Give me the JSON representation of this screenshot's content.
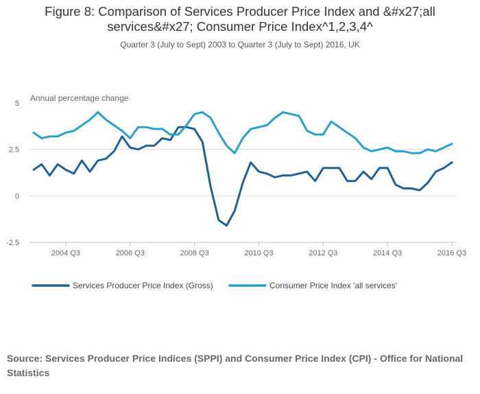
{
  "chart_data": {
    "type": "line",
    "title": "Figure 8: Comparison of Services Producer Price Index and &#x27;all services&#x27; Consumer Price Index^1,2,3,4^",
    "subtitle": "Quarter 3 (July to Sept) 2003 to Quarter 3 (July to Sept) 2016, UK",
    "ylabel": "Annual percentage change",
    "xlabel": "",
    "ylim": [
      -2.5,
      5
    ],
    "yticks": [
      -2.5,
      0,
      2.5,
      5
    ],
    "ytick_labels": [
      "-2.5",
      "0",
      "2.5",
      "5"
    ],
    "xtick_labels": [
      "2004 Q3",
      "2006 Q3",
      "2008 Q3",
      "2010 Q3",
      "2012 Q3",
      "2014 Q3",
      "2016 Q3"
    ],
    "xtick_index": [
      4,
      12,
      20,
      28,
      36,
      44,
      52
    ],
    "n_points": 53,
    "grid": true,
    "legend_position": "bottom-left",
    "series": [
      {
        "name": "Services Producer Price Index (Gross)",
        "color": "#206095",
        "values": [
          1.4,
          1.7,
          1.1,
          1.7,
          1.4,
          1.2,
          1.9,
          1.3,
          1.9,
          2.0,
          2.4,
          3.2,
          2.6,
          2.5,
          2.7,
          2.7,
          3.1,
          3.0,
          3.7,
          3.7,
          3.6,
          2.9,
          0.5,
          -1.3,
          -1.6,
          -0.8,
          0.7,
          1.8,
          1.3,
          1.2,
          1.0,
          1.1,
          1.1,
          1.2,
          1.3,
          0.8,
          1.5,
          1.5,
          1.5,
          0.8,
          0.8,
          1.3,
          0.9,
          1.5,
          1.5,
          0.6,
          0.4,
          0.4,
          0.3,
          0.7,
          1.3,
          1.5,
          1.8
        ]
      },
      {
        "name": "Consumer Price Index 'all services'",
        "color": "#27a0cc",
        "values": [
          3.4,
          3.1,
          3.2,
          3.2,
          3.4,
          3.5,
          3.8,
          4.1,
          4.5,
          4.1,
          3.8,
          3.5,
          3.1,
          3.7,
          3.7,
          3.6,
          3.6,
          3.3,
          3.3,
          3.8,
          4.4,
          4.5,
          4.2,
          3.4,
          2.7,
          2.3,
          3.1,
          3.6,
          3.7,
          3.8,
          4.2,
          4.5,
          4.4,
          4.3,
          3.5,
          3.3,
          3.3,
          4.0,
          3.7,
          3.4,
          3.1,
          2.6,
          2.4,
          2.5,
          2.6,
          2.4,
          2.4,
          2.3,
          2.3,
          2.5,
          2.4,
          2.6,
          2.8
        ]
      }
    ]
  },
  "source": "Source: Services Producer Price Indices (SPPI) and Consumer Price Index (CPI) - Office for National Statistics"
}
